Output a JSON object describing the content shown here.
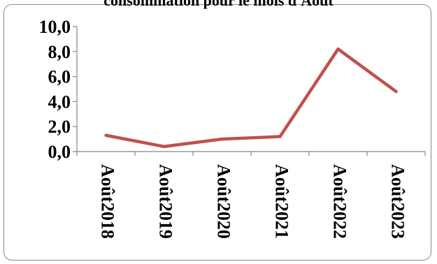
{
  "chart_data": {
    "type": "line",
    "title": "consommation pour le mois d'Août",
    "categories": [
      "Août2018",
      "Août2019",
      "Août2020",
      "Août2021",
      "Août2022",
      "Août2023"
    ],
    "series": [
      {
        "values": [
          1.3,
          0.4,
          1.0,
          1.2,
          8.2,
          4.8
        ]
      }
    ],
    "yticks": [
      "0,0",
      "2,0",
      "4,0",
      "6,0",
      "8,0",
      "10,0"
    ],
    "ylim": [
      0,
      10
    ],
    "grid": false,
    "legend": "none",
    "colors": {
      "line": "#c0504d",
      "axis": "#868686"
    }
  }
}
